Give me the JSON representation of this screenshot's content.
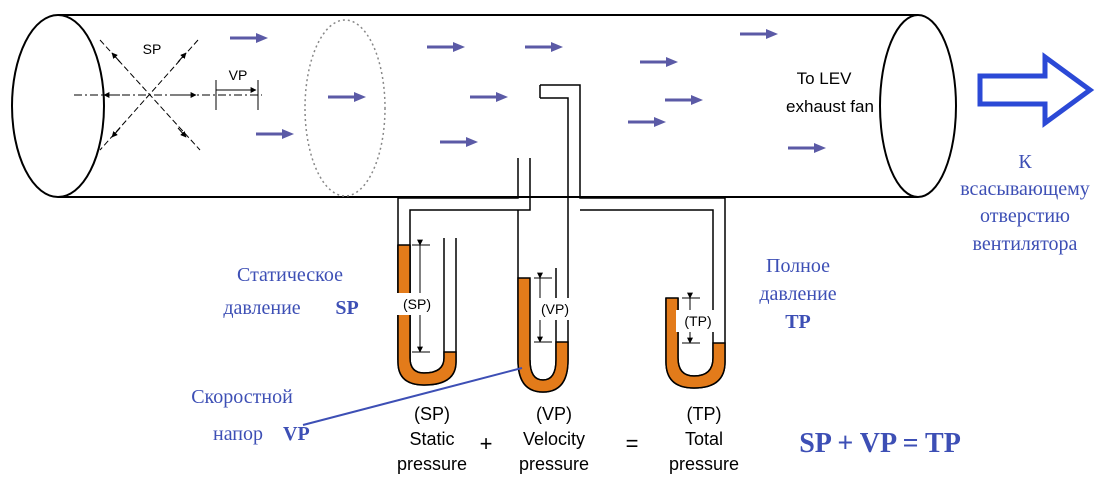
{
  "pipe": {
    "label_sp": "SP",
    "label_vp": "VP",
    "fan_text": "To LEV exhaust fan",
    "fan_line1": "To LEV",
    "fan_line2": "exhaust fan"
  },
  "suction": {
    "line1": "К",
    "line2": "всасывающему",
    "line3": "отверстию",
    "line4": "вентилятора"
  },
  "manometers": {
    "sp": {
      "inner_label": "(SP)",
      "level_fraction": 0.35
    },
    "vp": {
      "inner_label": "(VP)",
      "level_fraction": 0.25
    },
    "tp": {
      "inner_label": "(TP)",
      "level_fraction": 0.45
    }
  },
  "labels_ru": {
    "static_line1": "Статическое",
    "static_line2": "давление",
    "static_abbr": "SP",
    "full_line1": "Полное",
    "full_line2": "давление",
    "full_abbr": "TP",
    "velocity_line1": "Скоростной",
    "velocity_line2": "напор",
    "velocity_abbr": "VP"
  },
  "equation_en": {
    "sp_abbr": "(SP)",
    "sp_word1": "Static",
    "sp_word2": "pressure",
    "plus": "+",
    "vp_abbr": "(VP)",
    "vp_word1": "Velocity",
    "vp_word2": "pressure",
    "equals": "=",
    "tp_abbr": "(TP)",
    "tp_word1": "Total",
    "tp_word2": "pressure"
  },
  "formula": "SP + VP = TP",
  "colors": {
    "arrow": "#5b5aa6",
    "fluid": "#e37b1a",
    "blue_text": "#3d4fb5",
    "outline": "#000000"
  }
}
